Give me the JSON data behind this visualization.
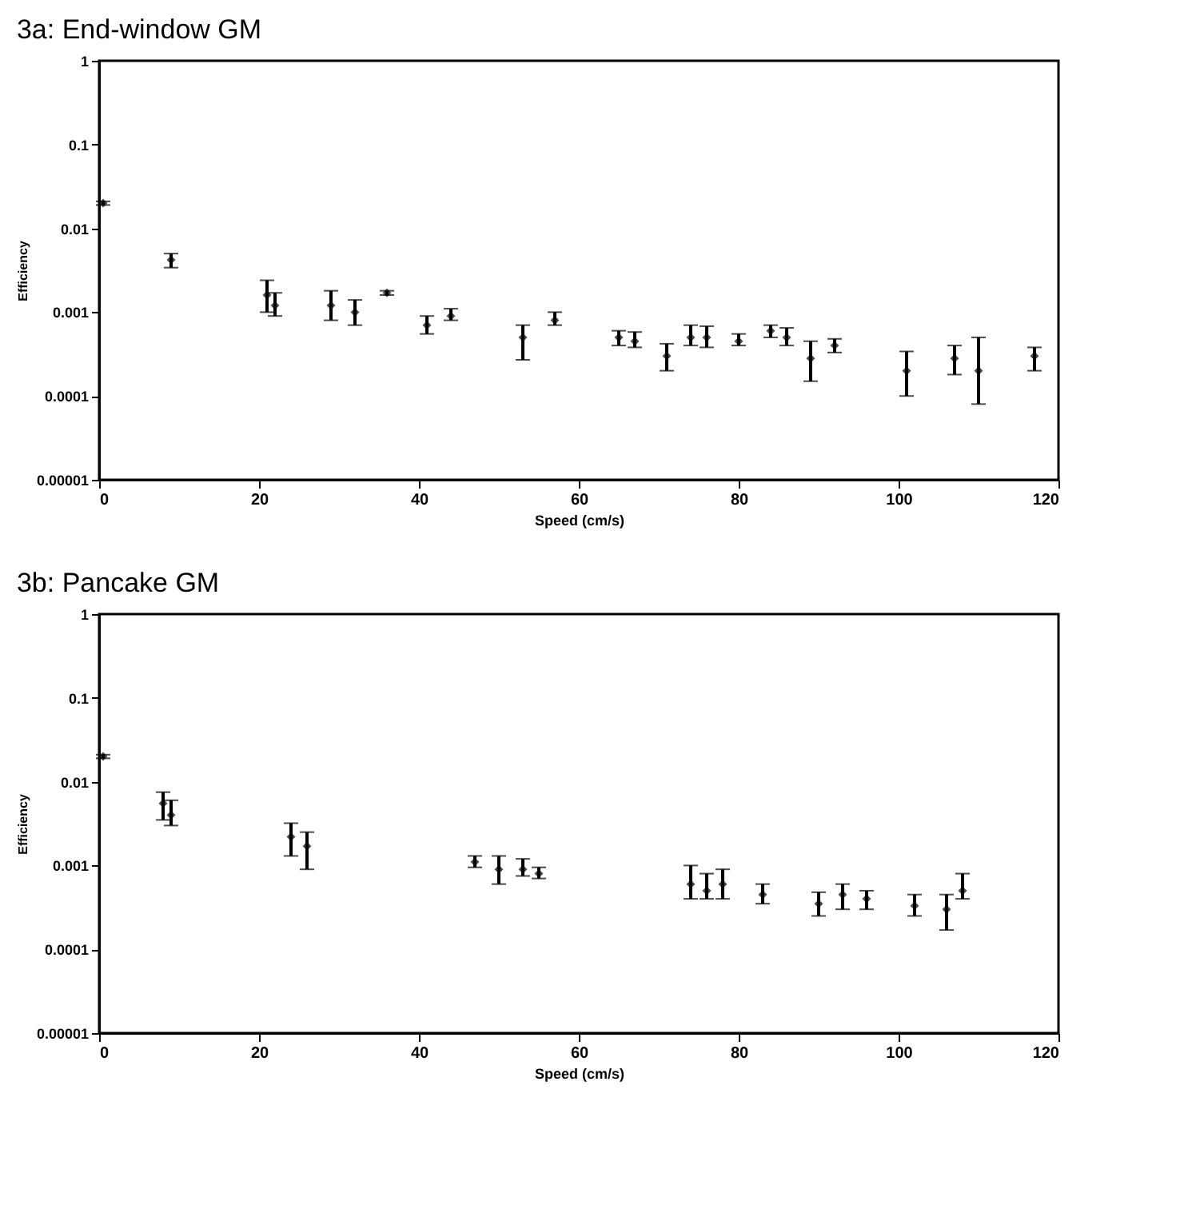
{
  "chart_data": [
    {
      "type": "scatter",
      "title": "3a:  End-window GM",
      "xlabel": "Speed (cm/s)",
      "ylabel": "Efficiency",
      "color": "#000000",
      "marker": "diamond",
      "grid": false,
      "log": "y",
      "xlim": [
        0,
        120
      ],
      "ylim": [
        1e-05,
        1
      ],
      "xticks": [
        0,
        20,
        40,
        60,
        80,
        100,
        120
      ],
      "yticks": [
        {
          "value": 1e-05,
          "label": "0.00001"
        },
        0.0001,
        0.001,
        0.01,
        0.1,
        1
      ],
      "x": [
        0.5,
        9,
        21,
        22,
        29,
        32,
        36,
        41,
        44,
        53,
        57,
        65,
        67,
        71,
        74,
        76,
        80,
        84,
        86,
        89,
        92,
        101,
        107,
        110,
        117
      ],
      "values": [
        0.02,
        0.0042,
        0.0016,
        0.0012,
        0.0012,
        0.001,
        0.0017,
        0.0007,
        0.0009,
        0.0005,
        0.0008,
        0.0005,
        0.00045,
        0.0003,
        0.0005,
        0.0005,
        0.00045,
        0.0006,
        0.0005,
        0.00028,
        0.0004,
        0.0002,
        0.00028,
        0.0002,
        0.0003
      ],
      "errors": [
        [
          0.019,
          0.021
        ],
        [
          0.0034,
          0.005
        ],
        [
          0.001,
          0.0024
        ],
        [
          0.0009,
          0.0017
        ],
        [
          0.0008,
          0.0018
        ],
        [
          0.0007,
          0.0014
        ],
        [
          0.0016,
          0.0018
        ],
        [
          0.00055,
          0.0009
        ],
        [
          0.0008,
          0.0011
        ],
        [
          0.00027,
          0.0007
        ],
        [
          0.0007,
          0.001
        ],
        [
          0.0004,
          0.0006
        ],
        [
          0.00038,
          0.00058
        ],
        [
          0.0002,
          0.00042
        ],
        [
          0.0004,
          0.0007
        ],
        [
          0.00038,
          0.00068
        ],
        [
          0.0004,
          0.00055
        ],
        [
          0.0005,
          0.0007
        ],
        [
          0.0004,
          0.00065
        ],
        [
          0.00015,
          0.00045
        ],
        [
          0.00033,
          0.00048
        ],
        [
          0.0001,
          0.00034
        ],
        [
          0.00018,
          0.0004
        ],
        [
          8e-05,
          0.0005
        ],
        [
          0.0002,
          0.00038
        ]
      ]
    },
    {
      "type": "scatter",
      "title": "3b:  Pancake GM",
      "xlabel": "Speed (cm/s)",
      "ylabel": "Efficiency",
      "color": "#000000",
      "marker": "diamond",
      "grid": false,
      "log": "y",
      "xlim": [
        0,
        120
      ],
      "ylim": [
        1e-05,
        1
      ],
      "xticks": [
        0,
        20,
        40,
        60,
        80,
        100,
        120
      ],
      "yticks": [
        {
          "value": 1e-05,
          "label": "0.00001"
        },
        0.0001,
        0.001,
        0.01,
        0.1,
        1
      ],
      "x": [
        0.5,
        8,
        9,
        24,
        26,
        47,
        50,
        53,
        55,
        74,
        76,
        78,
        83,
        90,
        93,
        96,
        102,
        106,
        108
      ],
      "values": [
        0.02,
        0.0055,
        0.004,
        0.0022,
        0.0017,
        0.0011,
        0.0009,
        0.0009,
        0.0008,
        0.0006,
        0.0005,
        0.0006,
        0.00045,
        0.00035,
        0.00045,
        0.0004,
        0.00033,
        0.0003,
        0.0005
      ],
      "errors": [
        [
          0.019,
          0.021
        ],
        [
          0.0035,
          0.0075
        ],
        [
          0.003,
          0.006
        ],
        [
          0.0013,
          0.0032
        ],
        [
          0.0009,
          0.0025
        ],
        [
          0.00095,
          0.0013
        ],
        [
          0.0006,
          0.0013
        ],
        [
          0.00075,
          0.0012
        ],
        [
          0.0007,
          0.00095
        ],
        [
          0.0004,
          0.001
        ],
        [
          0.0004,
          0.0008
        ],
        [
          0.0004,
          0.0009
        ],
        [
          0.00035,
          0.0006
        ],
        [
          0.00025,
          0.00048
        ],
        [
          0.0003,
          0.0006
        ],
        [
          0.0003,
          0.0005
        ],
        [
          0.00025,
          0.00045
        ],
        [
          0.00017,
          0.00045
        ],
        [
          0.0004,
          0.0008
        ]
      ]
    }
  ]
}
